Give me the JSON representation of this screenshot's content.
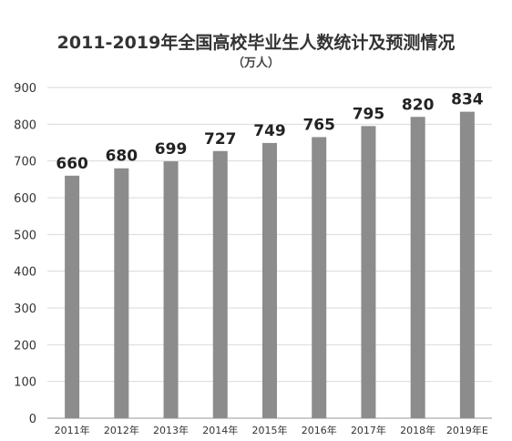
{
  "chart_data": {
    "type": "bar",
    "title": "2011-2019年全国高校毕业生人数统计及预测情况",
    "subtitle": "（万人）",
    "categories": [
      "2011年",
      "2012年",
      "2013年",
      "2014年",
      "2015年",
      "2016年",
      "2017年",
      "2018年",
      "2019年E"
    ],
    "values": [
      660,
      680,
      699,
      727,
      749,
      765,
      795,
      820,
      834
    ],
    "xlabel": "",
    "ylabel": "",
    "ylim": [
      0,
      900
    ],
    "yticks": [
      0,
      100,
      200,
      300,
      400,
      500,
      600,
      700,
      800,
      900
    ],
    "grid": true,
    "legend": "none",
    "colors": {
      "bar": "#8c8c8c",
      "grid": "#d9d9d9",
      "text": "#333333"
    }
  }
}
